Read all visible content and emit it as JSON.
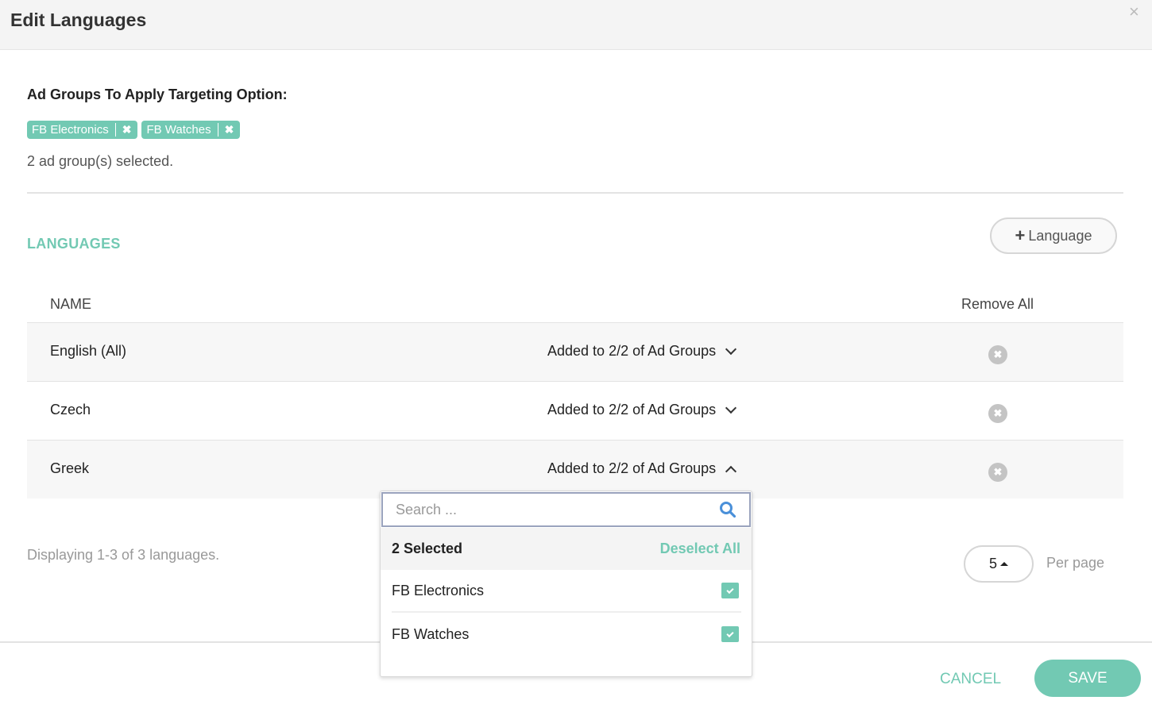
{
  "dialog": {
    "title": "Edit Languages",
    "close_icon": "×"
  },
  "ad_groups": {
    "heading": "Ad Groups To Apply Targeting Option:",
    "tags": [
      "FB Electronics",
      "FB Watches"
    ],
    "tag_remove": "✖",
    "count_text": "2 ad group(s) selected."
  },
  "languages": {
    "heading": "LANGUAGES",
    "add_button": "Language",
    "add_icon": "+",
    "columns": {
      "name": "NAME",
      "remove_all": "Remove All"
    },
    "rows": [
      {
        "name": "English (All)",
        "status": "Added to 2/2 of Ad Groups",
        "expanded": false
      },
      {
        "name": "Czech",
        "status": "Added to 2/2 of Ad Groups",
        "expanded": false
      },
      {
        "name": "Greek",
        "status": "Added to 2/2 of Ad Groups",
        "expanded": true
      }
    ],
    "remove_icon": "✖",
    "displaying": "Displaying 1-3 of 3 languages.",
    "per_page_value": "5",
    "per_page_label": "Per page"
  },
  "dropdown": {
    "search_placeholder": "Search ...",
    "selected_label": "2 Selected",
    "deselect_all": "Deselect All",
    "items": [
      {
        "label": "FB Electronics",
        "checked": true
      },
      {
        "label": "FB Watches",
        "checked": true
      }
    ]
  },
  "footer": {
    "cancel": "CANCEL",
    "save": "SAVE"
  },
  "colors": {
    "accent": "#72c9b3",
    "header_bg": "#f4f4f4"
  }
}
